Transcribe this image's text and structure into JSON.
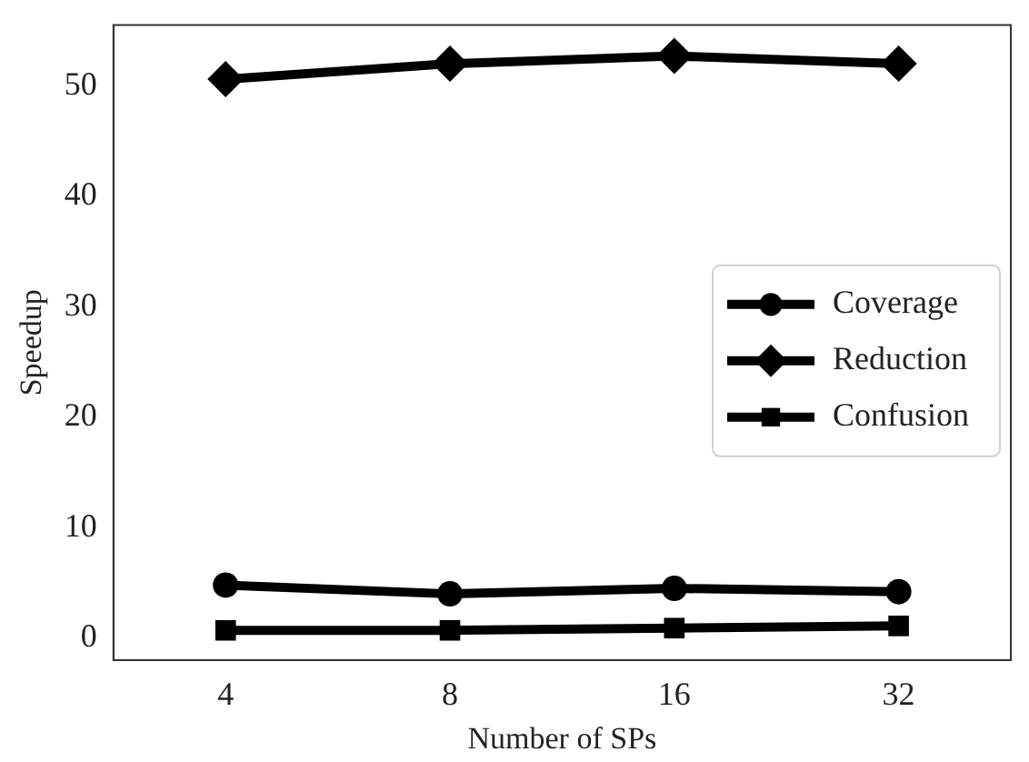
{
  "chart_data": {
    "type": "line",
    "xlabel": "Number of SPs",
    "ylabel": "Speedup",
    "categories": [
      "4",
      "8",
      "16",
      "32"
    ],
    "series": [
      {
        "name": "Coverage",
        "color": "#000000",
        "marker": "circle",
        "values": [
          4.8,
          4.0,
          4.5,
          4.2
        ]
      },
      {
        "name": "Reduction",
        "color": "#000000",
        "marker": "diamond",
        "values": [
          50.6,
          52.0,
          52.7,
          52.0
        ]
      },
      {
        "name": "Confusion",
        "color": "#000000",
        "marker": "square",
        "values": [
          0.7,
          0.7,
          0.9,
          1.1
        ]
      }
    ],
    "ylim": [
      -2,
      55.5
    ],
    "yticks": [
      0,
      10,
      20,
      30,
      40,
      50
    ],
    "grid": false,
    "legend": "right",
    "line_style": "solid"
  }
}
